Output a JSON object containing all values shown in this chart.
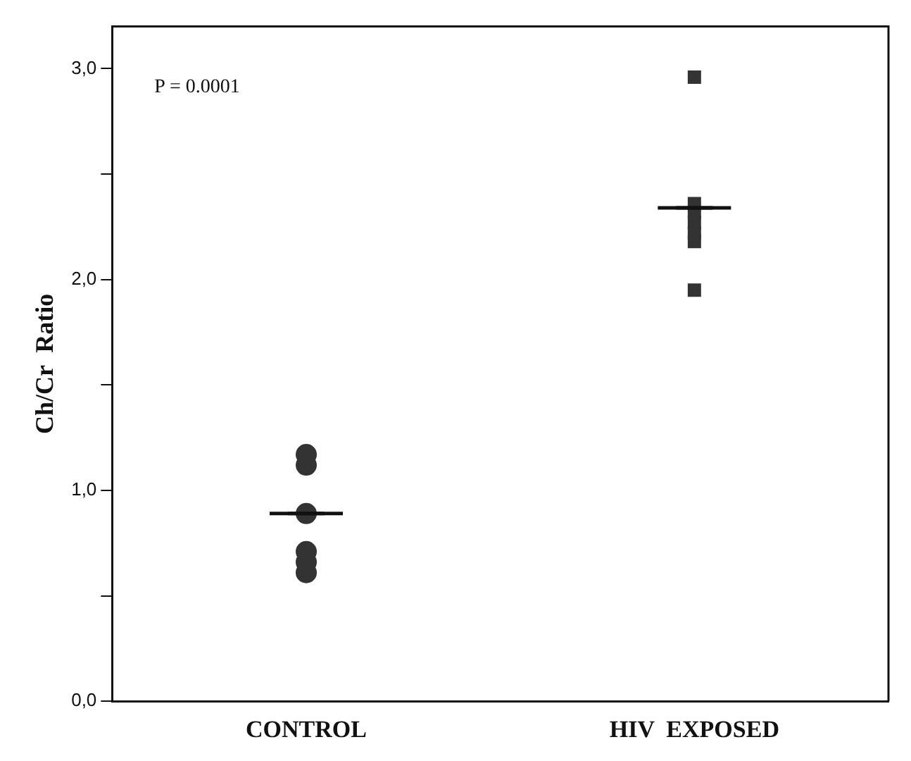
{
  "chart_data": {
    "type": "scatter",
    "ylabel": "Ch/Cr  Ratio",
    "categories": [
      "CONTROL",
      "HIV  EXPOSED"
    ],
    "series": [
      {
        "color": "#333333",
        "marker": "circle",
        "x": [
          "CONTROL",
          "CONTROL",
          "CONTROL",
          "CONTROL",
          "CONTROL",
          "CONTROL"
        ],
        "values": [
          1.17,
          1.12,
          0.89,
          0.71,
          0.66,
          0.61
        ]
      },
      {
        "color": "#333333",
        "marker": "square",
        "x": [
          "HIV  EXPOSED",
          "HIV  EXPOSED",
          "HIV  EXPOSED",
          "HIV  EXPOSED",
          "HIV  EXPOSED",
          "HIV  EXPOSED",
          "HIV  EXPOSED"
        ],
        "values": [
          2.96,
          2.36,
          2.32,
          2.27,
          2.22,
          2.18,
          1.95
        ]
      },
      {
        "type": "box",
        "color": "#111111",
        "boxes": [
          {
            "low": 0.89,
            "q1": 0.89,
            "median": 0.89,
            "q3": 0.89,
            "high": 0.89
          },
          {
            "low": 2.34,
            "q1": 2.34,
            "median": 2.34,
            "q3": 2.34,
            "high": 2.34
          }
        ]
      }
    ],
    "ylim": [
      0,
      3.2
    ],
    "yticks": [
      {
        "value": 0,
        "label": "0,0"
      },
      {
        "value": 0.5,
        "label": null
      },
      {
        "value": 1,
        "label": "1,0"
      },
      {
        "value": 1.5,
        "label": null
      },
      {
        "value": 2,
        "label": "2,0"
      },
      {
        "value": 2.5,
        "label": null
      },
      {
        "value": 3,
        "label": "3,0"
      }
    ],
    "annotations": [
      "P = 0.0001"
    ],
    "grid": false,
    "legend": false
  }
}
